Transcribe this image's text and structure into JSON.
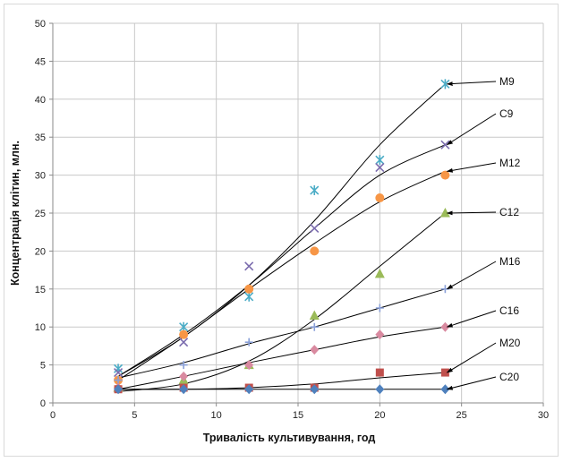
{
  "chart_data": {
    "type": "scatter",
    "title": "",
    "xlabel": "Тривалість культивування, год",
    "ylabel": "Концентрація клітин, млн.",
    "xlim": [
      0,
      30
    ],
    "ylim": [
      0,
      50
    ],
    "xticks": [
      0,
      5,
      10,
      15,
      20,
      25,
      30
    ],
    "yticks": [
      0,
      5,
      10,
      15,
      20,
      25,
      30,
      35,
      40,
      45,
      50
    ],
    "grid": true,
    "legend": "labels with arrows at right",
    "series": [
      {
        "name": "M9",
        "marker": "star",
        "color": "#4bacc6",
        "x": [
          4,
          8,
          12,
          16,
          20,
          24
        ],
        "y": [
          4.5,
          10,
          14,
          28,
          32,
          42
        ],
        "trend": [
          [
            4,
            3.5
          ],
          [
            8,
            8.7
          ],
          [
            12,
            15.5
          ],
          [
            16,
            24
          ],
          [
            20,
            34
          ],
          [
            24,
            42
          ]
        ]
      },
      {
        "name": "C9",
        "marker": "x",
        "color": "#7b6cae",
        "x": [
          4,
          8,
          12,
          16,
          20,
          24
        ],
        "y": [
          4,
          8,
          18,
          23,
          31,
          34
        ],
        "trend": [
          [
            4,
            3.5
          ],
          [
            8,
            9
          ],
          [
            12,
            15.5
          ],
          [
            16,
            23
          ],
          [
            20,
            30
          ],
          [
            24,
            34
          ]
        ]
      },
      {
        "name": "M12",
        "marker": "circle",
        "color": "#f79646",
        "x": [
          4,
          8,
          12,
          16,
          20,
          24
        ],
        "y": [
          3,
          9,
          15,
          20,
          27,
          30
        ],
        "trend": [
          [
            4,
            3
          ],
          [
            8,
            8.7
          ],
          [
            12,
            15
          ],
          [
            16,
            21
          ],
          [
            20,
            26.5
          ],
          [
            24,
            30.5
          ]
        ]
      },
      {
        "name": "C12",
        "marker": "triangle",
        "color": "#9bbb59",
        "x": [
          4,
          8,
          12,
          16,
          20,
          24
        ],
        "y": [
          2,
          3,
          5,
          11.5,
          17,
          25
        ],
        "trend": [
          [
            4,
            1.5
          ],
          [
            8,
            2.5
          ],
          [
            12,
            5.5
          ],
          [
            16,
            11
          ],
          [
            20,
            18
          ],
          [
            24,
            25
          ]
        ]
      },
      {
        "name": "M16",
        "marker": "plus",
        "color": "#8aa0d8",
        "x": [
          4,
          8,
          12,
          16,
          20,
          24
        ],
        "y": [
          3,
          5,
          8,
          10,
          12.5,
          15
        ],
        "trend": [
          [
            4,
            3.3
          ],
          [
            8,
            5.3
          ],
          [
            12,
            7.8
          ],
          [
            16,
            10
          ],
          [
            20,
            12.5
          ],
          [
            24,
            15
          ]
        ]
      },
      {
        "name": "C16",
        "marker": "diamond",
        "color": "#d98aa0",
        "x": [
          4,
          8,
          12,
          16,
          20,
          24
        ],
        "y": [
          2,
          3.5,
          5,
          7,
          9,
          10
        ],
        "trend": [
          [
            4,
            1.8
          ],
          [
            8,
            3.5
          ],
          [
            12,
            5.3
          ],
          [
            16,
            7
          ],
          [
            20,
            8.7
          ],
          [
            24,
            10
          ]
        ]
      },
      {
        "name": "M20",
        "marker": "square",
        "color": "#c0504d",
        "x": [
          4,
          8,
          12,
          16,
          20,
          24
        ],
        "y": [
          1.8,
          2,
          2,
          2,
          4,
          4
        ],
        "trend": [
          [
            4,
            1.8
          ],
          [
            8,
            1.8
          ],
          [
            12,
            2
          ],
          [
            16,
            2.5
          ],
          [
            20,
            3.3
          ],
          [
            24,
            4
          ]
        ]
      },
      {
        "name": "C20",
        "marker": "diamond",
        "color": "#4f81bd",
        "x": [
          4,
          8,
          12,
          16,
          20,
          24
        ],
        "y": [
          1.8,
          1.8,
          1.8,
          1.8,
          1.8,
          1.8
        ],
        "trend": [
          [
            4,
            1.8
          ],
          [
            8,
            1.8
          ],
          [
            12,
            1.8
          ],
          [
            16,
            1.8
          ],
          [
            20,
            1.8
          ],
          [
            24,
            1.8
          ]
        ]
      }
    ]
  }
}
